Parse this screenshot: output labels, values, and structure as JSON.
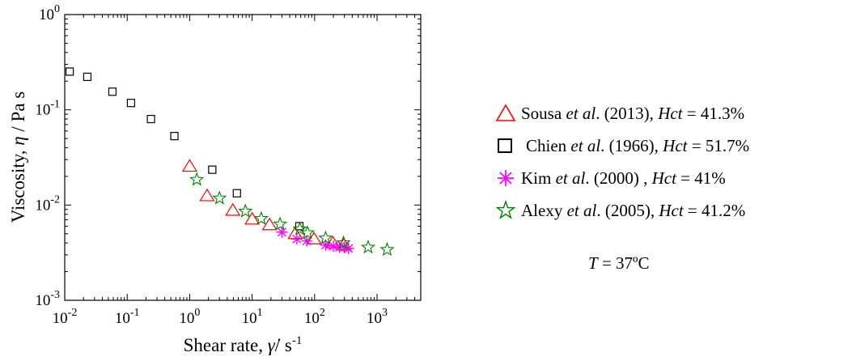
{
  "chart_data": {
    "type": "scatter",
    "xscale": "log",
    "yscale": "log",
    "xlim": [
      0.01,
      5000
    ],
    "ylim": [
      0.001,
      1
    ],
    "xlabel": "Shear rate, γ̇/ s-1",
    "ylabel": "Viscosity, η / Pa s",
    "x_ticks": [
      {
        "value": 0.01,
        "base": "10",
        "exp": "-2"
      },
      {
        "value": 0.1,
        "base": "10",
        "exp": "-1"
      },
      {
        "value": 1,
        "base": "10",
        "exp": "0"
      },
      {
        "value": 10,
        "base": "10",
        "exp": "1"
      },
      {
        "value": 100,
        "base": "10",
        "exp": "2"
      },
      {
        "value": 1000,
        "base": "10",
        "exp": "3"
      }
    ],
    "y_ticks": [
      {
        "value": 1,
        "base": "10",
        "exp": "0"
      },
      {
        "value": 0.1,
        "base": "10",
        "exp": "-1"
      },
      {
        "value": 0.01,
        "base": "10",
        "exp": "-2"
      },
      {
        "value": 0.001,
        "base": "10",
        "exp": "-3"
      }
    ],
    "grid": false,
    "legend_position": "right, outside plot",
    "series": [
      {
        "name": "Sousa et al. (2013), Hct = 41.3%",
        "marker": "triangle",
        "color": "#ff0000",
        "points": [
          [
            1.0,
            0.0255
          ],
          [
            1.9,
            0.0125
          ],
          [
            4.9,
            0.0088
          ],
          [
            10,
            0.0071
          ],
          [
            19,
            0.0062
          ],
          [
            49,
            0.005
          ],
          [
            98,
            0.0044
          ],
          [
            196,
            0.004
          ],
          [
            294,
            0.0038
          ]
        ]
      },
      {
        "name": "Chien et al. (1966), Hct = 51.7%",
        "marker": "square",
        "color": "#000000",
        "points": [
          [
            0.012,
            0.252
          ],
          [
            0.023,
            0.222
          ],
          [
            0.058,
            0.155
          ],
          [
            0.115,
            0.118
          ],
          [
            0.24,
            0.08
          ],
          [
            0.57,
            0.053
          ],
          [
            2.3,
            0.0235
          ],
          [
            5.7,
            0.0133
          ],
          [
            57,
            0.006
          ]
        ]
      },
      {
        "name": "Kim et al. (2000) , Hct = 41%",
        "marker": "asterisk",
        "color": "#ff00ff",
        "points": [
          [
            30,
            0.0052
          ],
          [
            52,
            0.0044
          ],
          [
            75,
            0.0042
          ],
          [
            150,
            0.0038
          ],
          [
            200,
            0.0037
          ],
          [
            250,
            0.0036
          ],
          [
            300,
            0.0036
          ],
          [
            350,
            0.0035
          ]
        ]
      },
      {
        "name": "Alexy et al. (2005), Hct = 41.2%",
        "marker": "star",
        "color": "#008000",
        "points": [
          [
            1.3,
            0.0185
          ],
          [
            3.0,
            0.0118
          ],
          [
            7.8,
            0.0086
          ],
          [
            14,
            0.0072
          ],
          [
            28,
            0.0063
          ],
          [
            58,
            0.0056
          ],
          [
            77,
            0.0051
          ],
          [
            150,
            0.0045
          ],
          [
            290,
            0.004
          ],
          [
            720,
            0.0036
          ],
          [
            1450,
            0.0034
          ]
        ]
      }
    ],
    "annotation": "T = 37ºC"
  },
  "legend": [
    {
      "prefix": "Sousa ",
      "italic": "et al",
      "middle": ". (2013),  ",
      "hct": "Hct",
      "value": " = 41.3%"
    },
    {
      "prefix": "Chien ",
      "italic": "et al",
      "middle": ". (1966),  ",
      "hct": "Hct",
      "value": " = 51.7%"
    },
    {
      "prefix": "Kim ",
      "italic": "et al",
      "middle": ". (2000) ,  ",
      "hct": "Hct",
      "value": " = 41%"
    },
    {
      "prefix": "Alexy ",
      "italic": "et al",
      "middle": ". (2005),  ",
      "hct": "Hct",
      "value": " = 41.2%"
    }
  ],
  "note": {
    "var": "T",
    "text": " = 37ºC"
  },
  "axis_titles": {
    "x_prefix": "Shear rate, ",
    "x_symbol": "γ̇",
    "x_suffix": "/ s",
    "x_exp": "-1",
    "y_prefix": "Viscosity, ",
    "y_symbol": "η",
    "y_suffix": " / Pa s"
  }
}
